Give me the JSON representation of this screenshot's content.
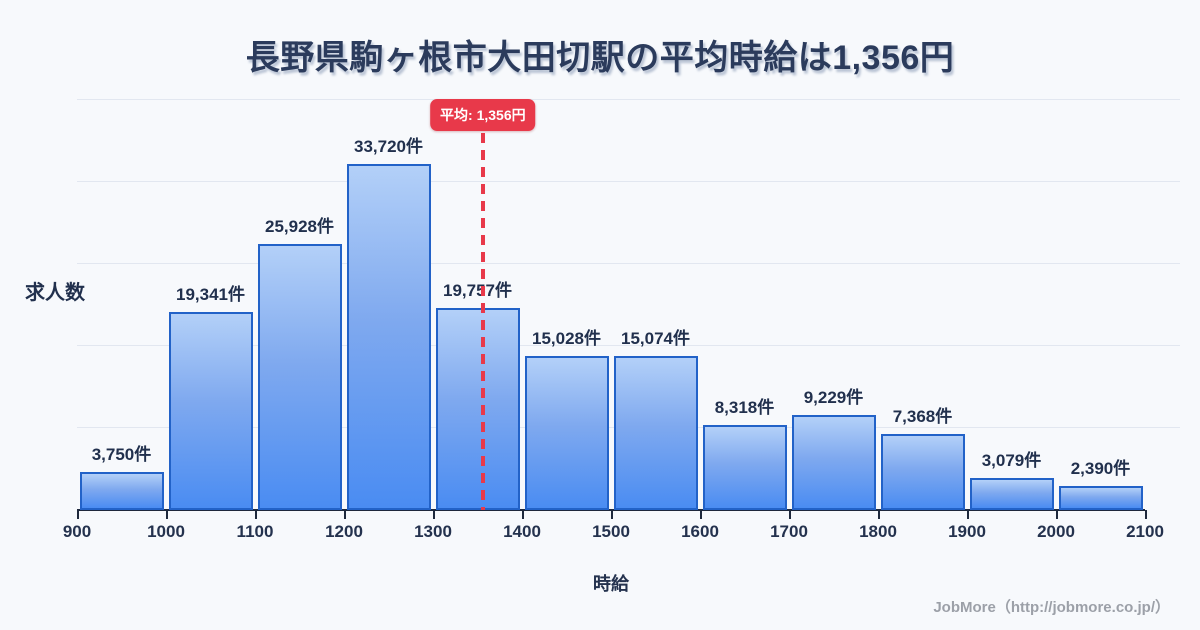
{
  "title": "長野県駒ヶ根市大田切駅の平均時給は1,356円",
  "footer": {
    "text": "JobMore（http://jobmore.co.jp/）"
  },
  "chart_data": {
    "type": "bar",
    "title": "長野県駒ヶ根市大田切駅の平均時給は1,356円",
    "xlabel": "時給",
    "ylabel": "求人数",
    "bin_edges": [
      900,
      1000,
      1100,
      1200,
      1300,
      1400,
      1500,
      1600,
      1700,
      1800,
      1900,
      2000,
      2100
    ],
    "values": [
      3750,
      19341,
      25928,
      33720,
      19757,
      15028,
      15074,
      8318,
      9229,
      7368,
      3079,
      2390
    ],
    "bar_labels": [
      "3,750件",
      "19,341件",
      "25,928件",
      "33,720件",
      "19,757件",
      "15,028件",
      "15,074件",
      "8,318件",
      "9,229件",
      "7,368件",
      "3,079件",
      "2,390件"
    ],
    "average": 1356,
    "average_label": "平均: 1,356円",
    "ylim": [
      0,
      40000
    ],
    "gridline_interval": 8000,
    "grid": true,
    "legend": "none",
    "colors": {
      "background": "#f7f9fc",
      "bar_border": "#2262c8",
      "bar_fill_top": "#b3d0f8",
      "bar_fill_bottom": "#4a8cf2",
      "average_line": "#e8394a",
      "title_text": "#2b3b5c",
      "label_text": "#21304d",
      "gridline": "#e2e7f0",
      "axis": "#1e283c",
      "footer_text": "#9ca0a8"
    }
  }
}
